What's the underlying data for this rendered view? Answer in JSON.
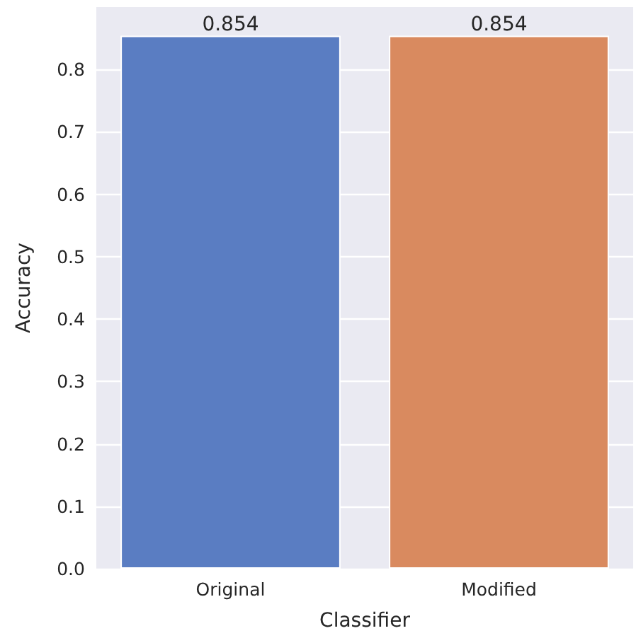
{
  "chart_data": {
    "type": "bar",
    "xlabel": "Classifier",
    "ylabel": "Accuracy",
    "categories": [
      "Original",
      "Modified"
    ],
    "values": [
      0.854,
      0.854
    ],
    "colors": [
      "#5a7dc2",
      "#d98a5f"
    ],
    "ylim": [
      0,
      0.9
    ],
    "yticks": [
      {
        "value": 0,
        "label": "0.0"
      },
      0.1,
      0.2,
      0.3,
      0.4,
      0.5,
      0.6,
      0.7,
      0.8
    ],
    "grid": "y",
    "data_labels": true
  }
}
